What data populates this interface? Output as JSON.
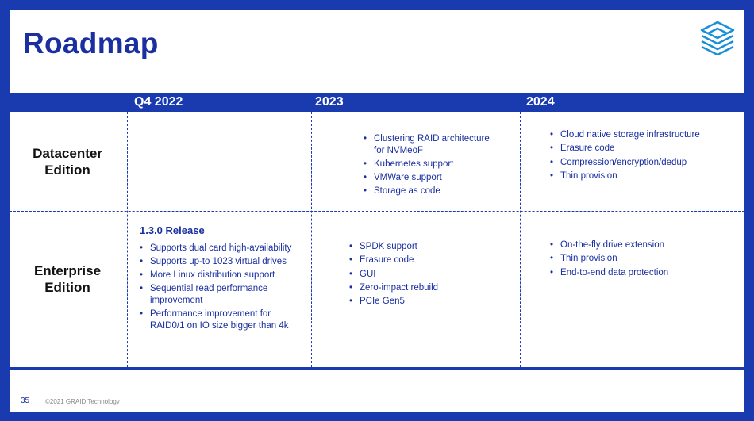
{
  "slide": {
    "title": "Roadmap",
    "logo_icon": "stacked-layers-logo-icon"
  },
  "columns": [
    "Q4 2022",
    "2023",
    "2024"
  ],
  "rows": [
    {
      "label_line1": "Datacenter",
      "label_line2": "Edition"
    },
    {
      "label_line1": "Enterprise",
      "label_line2": "Edition"
    }
  ],
  "datacenter": {
    "q4_2022": [],
    "y2023": [
      "Clustering RAID architecture for NVMeoF",
      "Kubernetes support",
      "VMWare support",
      "Storage as code"
    ],
    "y2024": [
      "Cloud native storage infrastructure",
      "Erasure code",
      "Compression/encryption/dedup",
      "Thin provision"
    ]
  },
  "enterprise": {
    "q4_2022_title": "1.3.0 Release",
    "q4_2022": [
      "Supports dual card high-availability",
      "Supports up-to 1023 virtual drives",
      "More Linux distribution support",
      "Sequential read performance improvement",
      "Performance improvement for RAID0/1 on IO size bigger than 4k"
    ],
    "y2023": [
      "SPDK support",
      "Erasure code",
      "GUI",
      "Zero-impact rebuild",
      "PCIe Gen5"
    ],
    "y2024": [
      "On-the-fly drive extension",
      "Thin provision",
      "End-to-end data protection"
    ]
  },
  "footer": {
    "page_number": "35",
    "copyright": "©2021 GRAID Technology"
  },
  "colors": {
    "brand_blue": "#1a3bb0",
    "text_blue": "#1a2fa0"
  }
}
